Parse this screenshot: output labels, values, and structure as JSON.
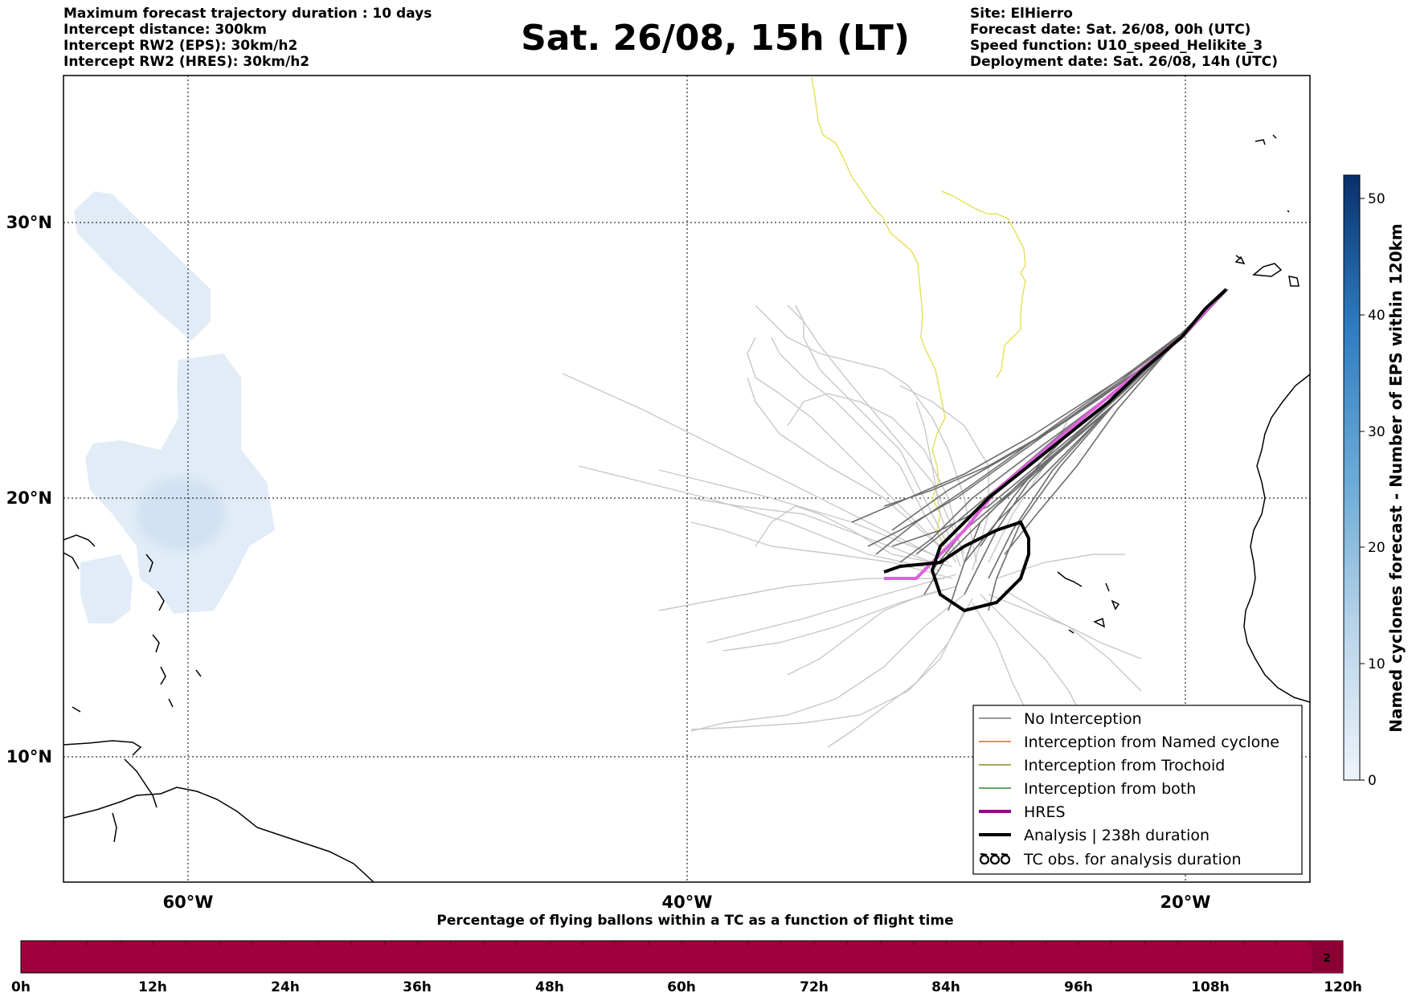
{
  "header": {
    "title": "Sat. 26/08, 15h (LT)",
    "left_lines": [
      "Maximum forecast trajectory duration : 10 days",
      "Intercept distance: 300km",
      "Intercept RW2 (EPS):  30km/h2",
      "Intercept RW2 (HRES): 30km/h2"
    ],
    "right_lines": [
      "Site: ElHierro",
      "Forecast date: Sat. 26/08, 00h (UTC)",
      "Speed function: U10_speed_Helikite_3",
      "Deployment date: Sat. 26/08, 14h (UTC)"
    ]
  },
  "map": {
    "lon_labels": [
      "60°W",
      "40°W",
      "20°W"
    ],
    "lat_labels": [
      "30°N",
      "20°N",
      "10°N"
    ],
    "grid_lons": [
      -60,
      -40,
      -20
    ],
    "grid_lats": [
      30,
      20,
      10
    ],
    "extent": {
      "lon_min": -65,
      "lon_max": -15,
      "lat_min": 5.1,
      "lat_max": 34.5
    }
  },
  "colorbar": {
    "label": "Named cyclones forecast - Number of EPS within 120km",
    "ticks": [
      0,
      10,
      20,
      30,
      40,
      50
    ],
    "min": 0,
    "max": 52,
    "color_low": "#e8f1fa",
    "color_high": "#08306b"
  },
  "legend": {
    "items": [
      {
        "label": "No Interception",
        "color": "#777777",
        "style": "thin"
      },
      {
        "label": "Interception from Named cyclone",
        "color": "#e8622c",
        "style": "thin"
      },
      {
        "label": "Interception from Trochoid",
        "color": "#8a8a2a",
        "style": "thin"
      },
      {
        "label": "Interception from both",
        "color": "#2a8a2a",
        "style": "thin"
      },
      {
        "label": "HRES",
        "color": "#8b0a8b",
        "style": "thick"
      },
      {
        "label": "Analysis | 238h duration",
        "color": "#000000",
        "style": "thick"
      },
      {
        "label": "TC obs. for analysis duration",
        "color": "#000000",
        "style": "symbol"
      }
    ]
  },
  "flight_bar": {
    "title": "Percentage of flying ballons within a TC as a function of flight time",
    "tick_labels": [
      "0h",
      "12h",
      "24h",
      "36h",
      "48h",
      "60h",
      "72h",
      "84h",
      "96h",
      "108h",
      "120h"
    ],
    "end_value": "2",
    "bar_color": "#a0003c"
  },
  "colors": {
    "ensemble_near": "#6e6e6e",
    "ensemble_far": "#c8c8c8",
    "tc_tracks": "#e8e060",
    "hres": "#e060e0",
    "analysis": "#000000"
  }
}
